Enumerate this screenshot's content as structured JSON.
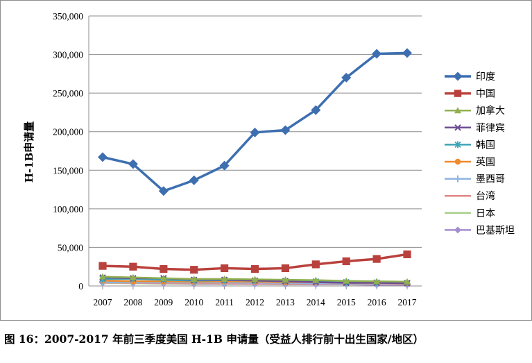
{
  "caption": "图 16：2007-2017 年前三季度美国 H-1B 申请量（受益人排行前十出生国家/地区）",
  "chart_data": {
    "type": "line",
    "title": "",
    "xlabel": "",
    "ylabel": "H-1B申请量",
    "ylim": [
      0,
      350000
    ],
    "yticks": [
      0,
      50000,
      100000,
      150000,
      200000,
      250000,
      300000,
      350000
    ],
    "ytick_labels": [
      "0",
      "50,000",
      "100,000",
      "150,000",
      "200,000",
      "250,000",
      "300,000",
      "350,000"
    ],
    "categories": [
      "2007",
      "2008",
      "2009",
      "2010",
      "2011",
      "2012",
      "2013",
      "2014",
      "2015",
      "2016",
      "2017"
    ],
    "grid": "horizontal",
    "legend_position": "right",
    "series": [
      {
        "name": "印度",
        "color": "#3d6fb0",
        "marker": "diamond",
        "values": [
          167000,
          158000,
          123000,
          137000,
          156000,
          199000,
          202000,
          228000,
          270000,
          301000,
          302000
        ]
      },
      {
        "name": "中国",
        "color": "#b9413d",
        "marker": "square",
        "values": [
          26000,
          25000,
          22000,
          21000,
          23000,
          22000,
          23000,
          28000,
          32000,
          35000,
          41000
        ]
      },
      {
        "name": "加拿大",
        "color": "#90b050",
        "marker": "triangle",
        "values": [
          12000,
          11000,
          10000,
          9000,
          9000,
          8500,
          8000,
          7500,
          6500,
          6000,
          5500
        ]
      },
      {
        "name": "菲律宾",
        "color": "#6e4d93",
        "marker": "x",
        "values": [
          11000,
          10000,
          10000,
          8000,
          8000,
          7000,
          6000,
          5000,
          4000,
          4000,
          3500
        ]
      },
      {
        "name": "韩国",
        "color": "#3ca4b8",
        "marker": "star",
        "values": [
          9000,
          9000,
          8000,
          7000,
          7500,
          7000,
          6500,
          6000,
          5000,
          4500,
          4000
        ]
      },
      {
        "name": "英国",
        "color": "#f08a2c",
        "marker": "circle",
        "values": [
          7000,
          6000,
          6000,
          5500,
          6000,
          5500,
          5000,
          5000,
          4000,
          4000,
          3500
        ]
      },
      {
        "name": "墨西哥",
        "color": "#8fb3e0",
        "marker": "plus",
        "values": [
          5000,
          4500,
          4500,
          4500,
          4500,
          4000,
          4000,
          3500,
          3000,
          3000,
          3000
        ]
      },
      {
        "name": "台湾",
        "color": "#e08888",
        "marker": "none",
        "values": [
          4500,
          4000,
          3500,
          3500,
          3500,
          3000,
          3000,
          2500,
          2500,
          2000,
          2000
        ]
      },
      {
        "name": "日本",
        "color": "#a8d08c",
        "marker": "none",
        "values": [
          4000,
          3500,
          3000,
          3000,
          3000,
          3000,
          2500,
          2500,
          2000,
          2000,
          2000
        ]
      },
      {
        "name": "巴基斯坦",
        "color": "#a48ed0",
        "marker": "diamond",
        "values": [
          4000,
          3500,
          3000,
          2500,
          2500,
          2500,
          2000,
          2000,
          2000,
          1500,
          1500
        ]
      }
    ]
  }
}
